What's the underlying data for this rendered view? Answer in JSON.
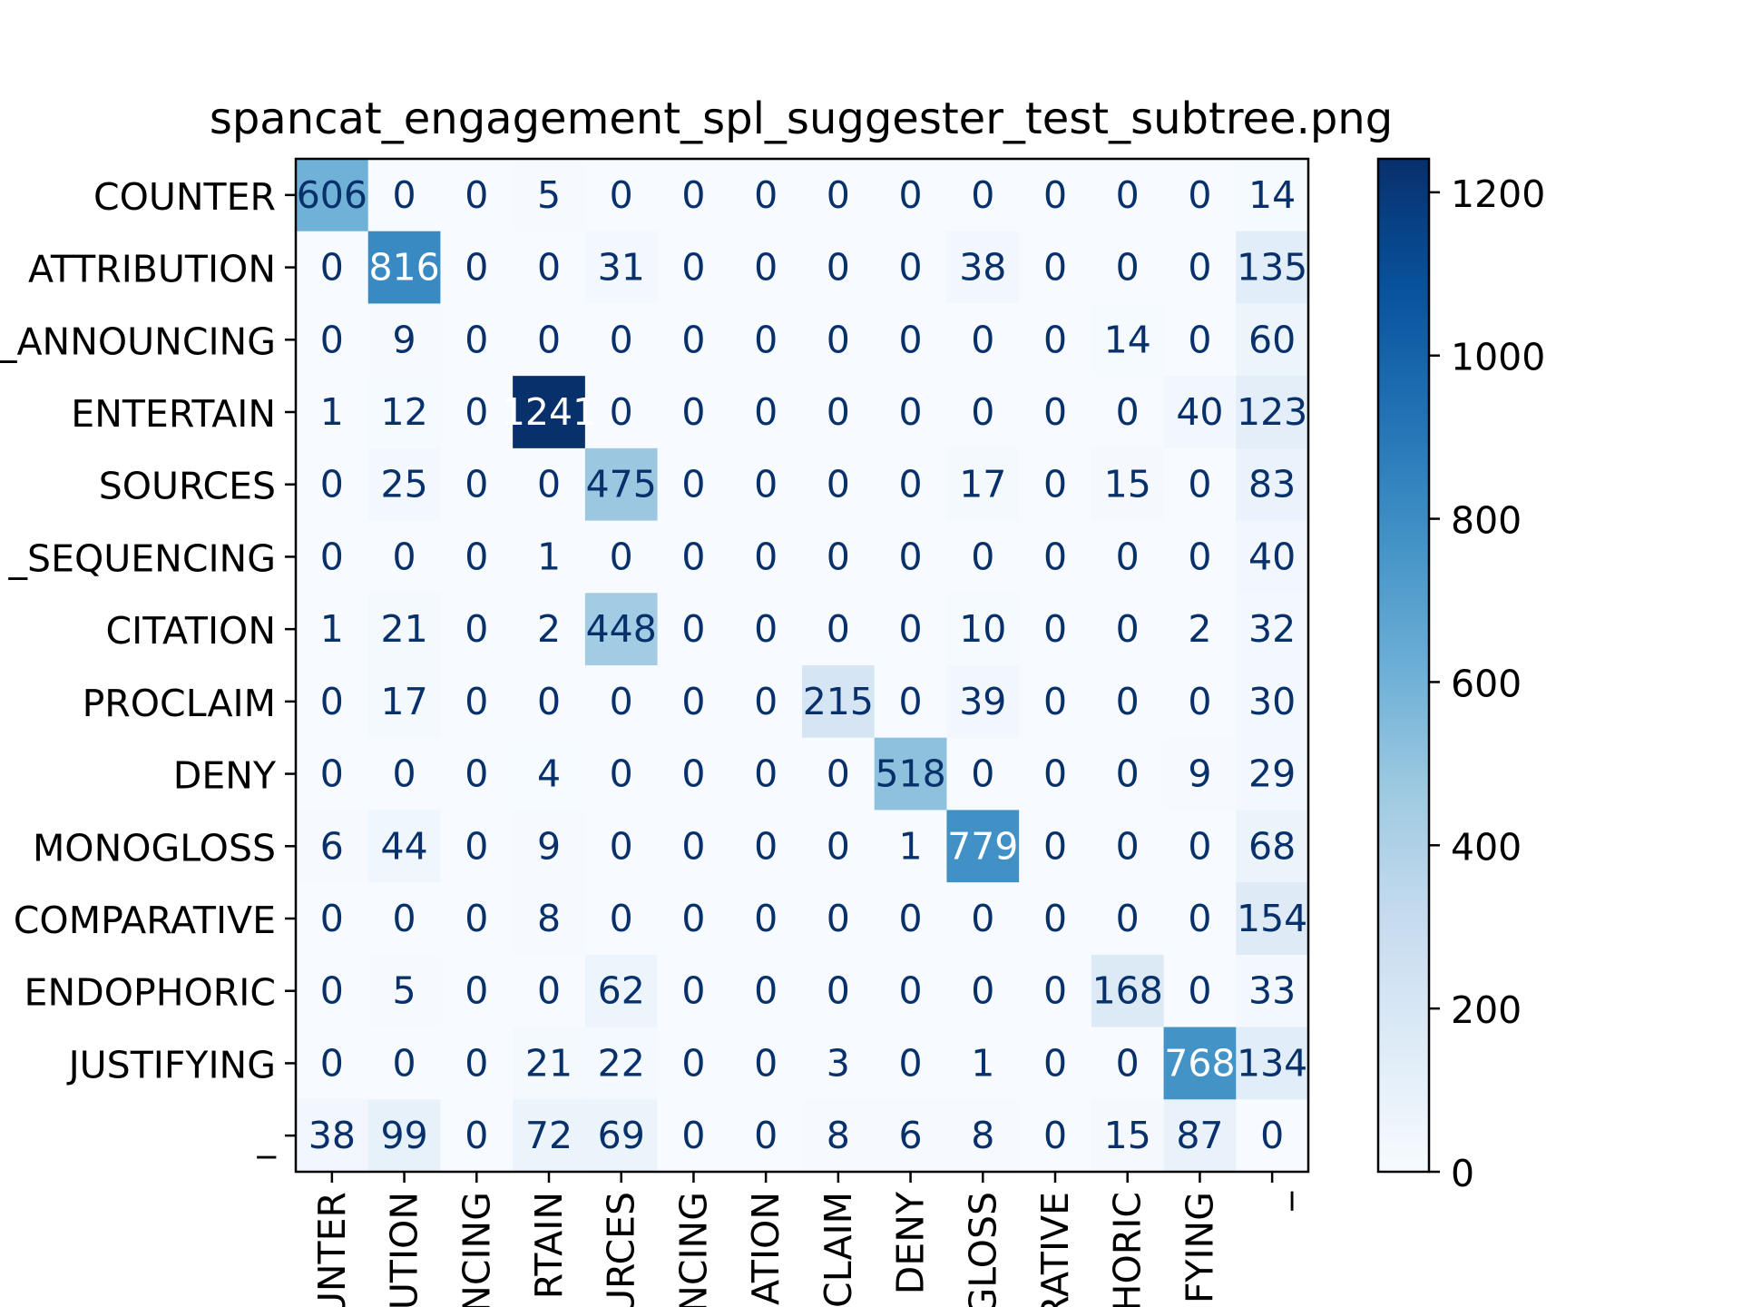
{
  "chart_data": {
    "type": "heatmap",
    "title": "spancat_engagement_spl_suggester_test_subtree.png",
    "row_labels": [
      "COUNTER",
      "ATTRIBUTION",
      "_ANNOUNCING",
      "ENTERTAIN",
      "SOURCES",
      "_SEQUENCING",
      "CITATION",
      "PROCLAIM",
      "DENY",
      "MONOGLOSS",
      "COMPARATIVE",
      "ENDOPHORIC",
      "JUSTIFYING",
      "_"
    ],
    "col_labels": [
      "UNTER",
      "UTION",
      "NCING",
      "RTAIN",
      "URCES",
      "NCING",
      "ATION",
      "CLAIM",
      "DENY",
      "GLOSS",
      "RATIVE",
      "HORIC",
      "IFYING",
      "_"
    ],
    "matrix": [
      [
        606,
        0,
        0,
        5,
        0,
        0,
        0,
        0,
        0,
        0,
        0,
        0,
        0,
        14
      ],
      [
        0,
        816,
        0,
        0,
        31,
        0,
        0,
        0,
        0,
        38,
        0,
        0,
        0,
        135
      ],
      [
        0,
        9,
        0,
        0,
        0,
        0,
        0,
        0,
        0,
        0,
        0,
        14,
        0,
        60
      ],
      [
        1,
        12,
        0,
        1241,
        0,
        0,
        0,
        0,
        0,
        0,
        0,
        0,
        40,
        123
      ],
      [
        0,
        25,
        0,
        0,
        475,
        0,
        0,
        0,
        0,
        17,
        0,
        15,
        0,
        83
      ],
      [
        0,
        0,
        0,
        1,
        0,
        0,
        0,
        0,
        0,
        0,
        0,
        0,
        0,
        40
      ],
      [
        1,
        21,
        0,
        2,
        448,
        0,
        0,
        0,
        0,
        10,
        0,
        0,
        2,
        32
      ],
      [
        0,
        17,
        0,
        0,
        0,
        0,
        0,
        215,
        0,
        39,
        0,
        0,
        0,
        30
      ],
      [
        0,
        0,
        0,
        4,
        0,
        0,
        0,
        0,
        518,
        0,
        0,
        0,
        9,
        29
      ],
      [
        6,
        44,
        0,
        9,
        0,
        0,
        0,
        0,
        1,
        779,
        0,
        0,
        0,
        68
      ],
      [
        0,
        0,
        0,
        8,
        0,
        0,
        0,
        0,
        0,
        0,
        0,
        0,
        0,
        154
      ],
      [
        0,
        5,
        0,
        0,
        62,
        0,
        0,
        0,
        0,
        0,
        0,
        168,
        0,
        33
      ],
      [
        0,
        0,
        0,
        21,
        22,
        0,
        0,
        3,
        0,
        1,
        0,
        0,
        768,
        134
      ],
      [
        38,
        99,
        0,
        72,
        69,
        0,
        0,
        8,
        6,
        8,
        0,
        15,
        87,
        0
      ]
    ],
    "colorbar": {
      "ticks": [
        0,
        200,
        400,
        600,
        800,
        1000,
        1200
      ],
      "vmin": 0,
      "vmax": 1241
    },
    "colormap": "Blues",
    "colors": {
      "low": "#f7fbff",
      "high": "#08306b",
      "text_light": "#ffffff",
      "text_dark": "#08306b"
    }
  }
}
